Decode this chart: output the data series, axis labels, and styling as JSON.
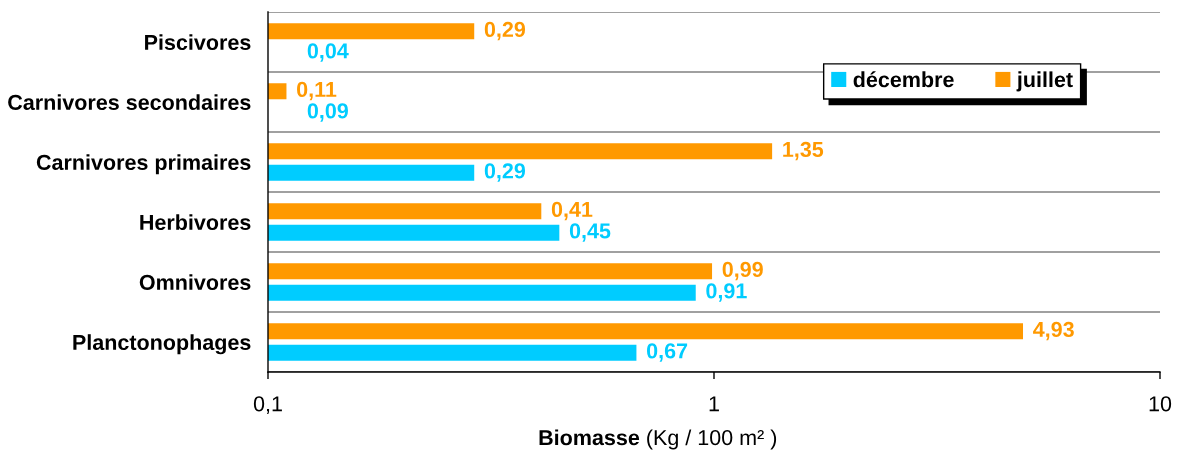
{
  "chart_data": {
    "type": "bar",
    "orientation": "horizontal",
    "xlabel": "Biomasse (Kg / 100 m² )",
    "categories": [
      "Piscivores",
      "Carnivores secondaires",
      "Carnivores primaires",
      "Herbivores",
      "Omnivores",
      "Planctonophages"
    ],
    "series": [
      {
        "name": "décembre",
        "color": "#00ccff",
        "values": [
          null,
          null,
          0.29,
          0.45,
          0.91,
          0.67
        ],
        "value_labels": [
          "0,04",
          "0,09",
          "0,29",
          "0,45",
          "0,91",
          "0,67"
        ]
      },
      {
        "name": "juillet",
        "color": "#ff9900",
        "values": [
          0.29,
          0.11,
          1.35,
          0.41,
          0.99,
          4.93
        ],
        "value_labels": [
          "0,29",
          "0,11",
          "1,35",
          "0,41",
          "0,99",
          "4,93"
        ]
      }
    ],
    "log": "x",
    "xlim": [
      0.1,
      10
    ],
    "xticks": [
      {
        "value": 0.1,
        "label": "0,1"
      },
      1,
      10
    ],
    "grid": "y",
    "legend": "top right"
  }
}
